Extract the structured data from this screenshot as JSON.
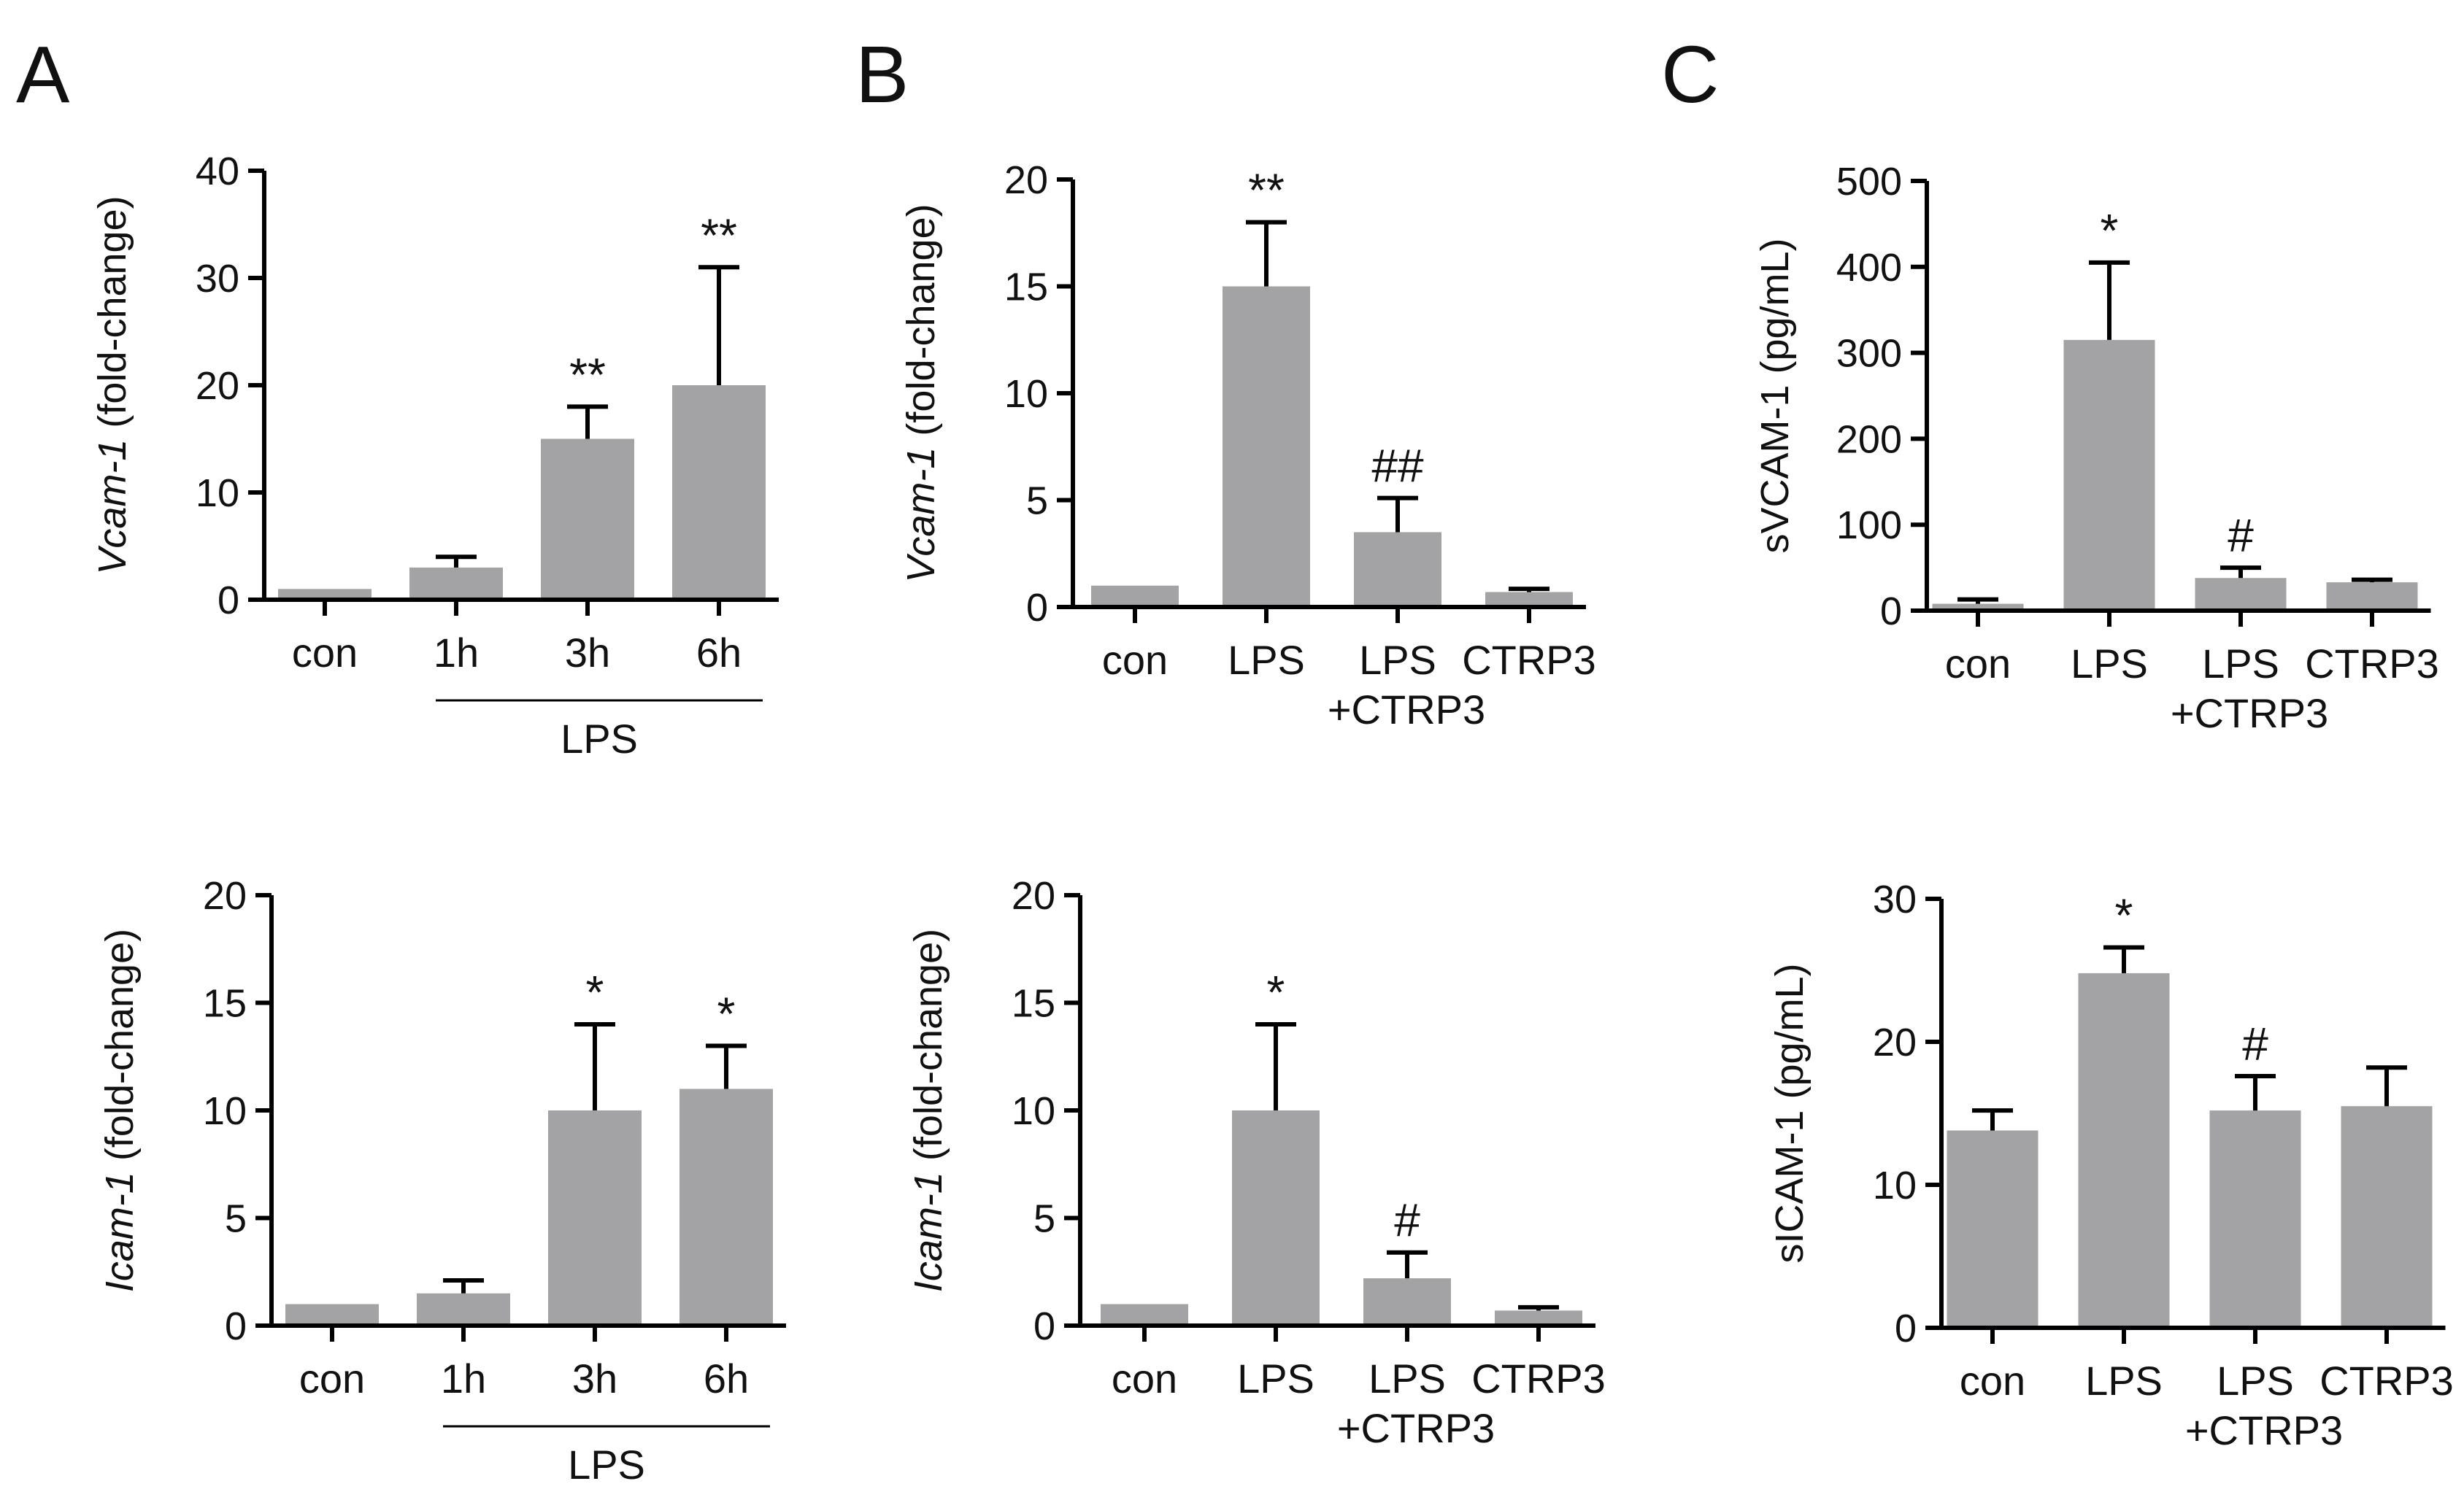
{
  "colors": {
    "bar": "#a3a3a5",
    "axis": "#000000",
    "text": "#111111"
  },
  "chart_data": [
    {
      "type": "bar",
      "id": "A-top",
      "panel_label": "A",
      "categories": [
        "con",
        "1h",
        "3h",
        "6h"
      ],
      "values": [
        1,
        3,
        15,
        20
      ],
      "errors": [
        0,
        1,
        3,
        11
      ],
      "significance": [
        "",
        "",
        "**",
        "**"
      ],
      "ylim": [
        0,
        40
      ],
      "yticks": [
        "0",
        "10",
        "20",
        "30",
        "40"
      ],
      "ylabel_gene": "Vcam-1",
      "ylabel_rest": " (fold-change)",
      "group": {
        "label": "LPS",
        "from": 1,
        "to": 3
      }
    },
    {
      "type": "bar",
      "id": "B-top",
      "panel_label": "B",
      "categories": [
        "con",
        "LPS",
        "LPS\n+CTRP3",
        "CTRP3"
      ],
      "values": [
        1,
        15,
        3.5,
        0.7
      ],
      "errors": [
        0,
        3,
        1.6,
        0.15
      ],
      "significance": [
        "",
        "**",
        "##",
        ""
      ],
      "ylim": [
        0,
        20
      ],
      "yticks": [
        "0",
        "5",
        "10",
        "15",
        "20"
      ],
      "ylabel_gene": "Vcam-1",
      "ylabel_rest": " (fold-change)"
    },
    {
      "type": "bar",
      "id": "C-top",
      "panel_label": "C",
      "categories": [
        "con",
        "LPS",
        "LPS\n+CTRP3",
        "CTRP3"
      ],
      "values": [
        8,
        315,
        38,
        33
      ],
      "errors": [
        5,
        90,
        12,
        3
      ],
      "significance": [
        "",
        "*",
        "#",
        ""
      ],
      "ylim": [
        0,
        500
      ],
      "yticks": [
        "0",
        "100",
        "200",
        "300",
        "400",
        "500"
      ],
      "ylabel_gene": "",
      "ylabel_rest": "sVCAM-1 (pg/mL)"
    },
    {
      "type": "bar",
      "id": "A-bottom",
      "categories": [
        "con",
        "1h",
        "3h",
        "6h"
      ],
      "values": [
        1,
        1.5,
        10,
        11
      ],
      "errors": [
        0,
        0.6,
        4,
        2
      ],
      "significance": [
        "",
        "",
        "*",
        "*"
      ],
      "ylim": [
        0,
        20
      ],
      "yticks": [
        "0",
        "5",
        "10",
        "15",
        "20"
      ],
      "ylabel_gene": "Icam-1",
      "ylabel_rest": " (fold-change)",
      "group": {
        "label": "LPS",
        "from": 1,
        "to": 3
      }
    },
    {
      "type": "bar",
      "id": "B-bottom",
      "categories": [
        "con",
        "LPS",
        "LPS\n+CTRP3",
        "CTRP3"
      ],
      "values": [
        1,
        10,
        2.2,
        0.7
      ],
      "errors": [
        0,
        4,
        1.2,
        0.15
      ],
      "significance": [
        "",
        "*",
        "#",
        ""
      ],
      "ylim": [
        0,
        20
      ],
      "yticks": [
        "0",
        "5",
        "10",
        "15",
        "20"
      ],
      "ylabel_gene": "Icam-1",
      "ylabel_rest": " (fold-change)"
    },
    {
      "type": "bar",
      "id": "C-bottom",
      "categories": [
        "con",
        "LPS",
        "LPS\n+CTRP3",
        "CTRP3"
      ],
      "values": [
        13.8,
        24.8,
        15.2,
        15.5
      ],
      "errors": [
        1.4,
        1.8,
        2.4,
        2.7
      ],
      "significance": [
        "",
        "*",
        "#",
        ""
      ],
      "ylim": [
        0,
        30
      ],
      "yticks": [
        "0",
        "10",
        "20",
        "30"
      ],
      "ylabel_gene": "",
      "ylabel_rest": "sICAM-1 (pg/mL)"
    }
  ]
}
